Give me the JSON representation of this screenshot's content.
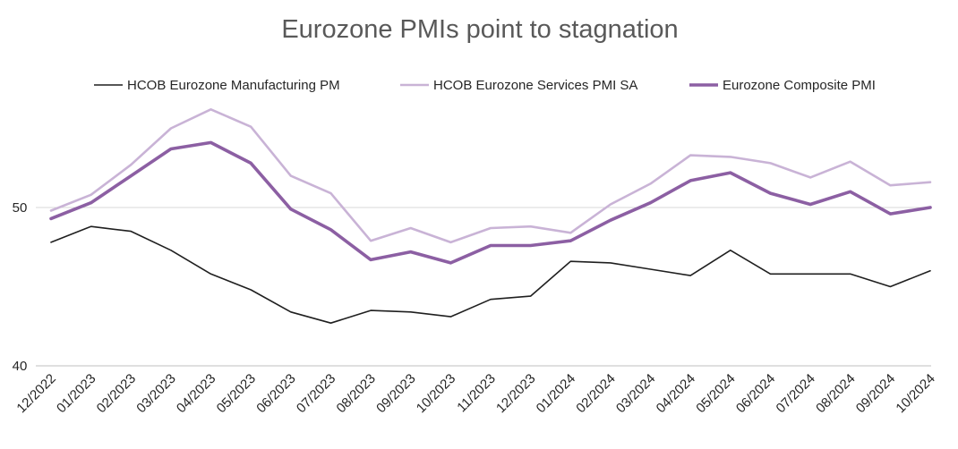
{
  "chart_data": {
    "type": "line",
    "title": "Eurozone PMIs point to stagnation",
    "xlabel": "",
    "ylabel": "",
    "categories": [
      "12/2022",
      "01/2023",
      "02/2023",
      "03/2023",
      "04/2023",
      "05/2023",
      "06/2023",
      "07/2023",
      "08/2023",
      "09/2023",
      "10/2023",
      "11/2023",
      "12/2023",
      "01/2024",
      "02/2024",
      "03/2024",
      "04/2024",
      "05/2024",
      "06/2024",
      "07/2024",
      "08/2024",
      "09/2024",
      "10/2024"
    ],
    "yticks": [
      40,
      50
    ],
    "ylim": [
      40,
      60
    ],
    "grid": "horizontal",
    "legend_position": "top",
    "series": [
      {
        "name": "HCOB Eurozone Manufacturing PM",
        "color": "#1f1f1f",
        "width": 1.6,
        "values": [
          47.8,
          48.8,
          48.5,
          47.3,
          45.8,
          44.8,
          43.4,
          42.7,
          43.5,
          43.4,
          43.1,
          44.2,
          44.4,
          46.6,
          46.5,
          46.1,
          45.7,
          47.3,
          45.8,
          45.8,
          45.8,
          45.0,
          46.0
        ]
      },
      {
        "name": "HCOB Eurozone Services PMI SA",
        "color": "#c9b3d6",
        "width": 2.6,
        "values": [
          49.8,
          50.8,
          52.7,
          55.0,
          56.2,
          55.1,
          52.0,
          50.9,
          47.9,
          48.7,
          47.8,
          48.7,
          48.8,
          48.4,
          50.2,
          51.5,
          53.3,
          53.2,
          52.8,
          51.9,
          52.9,
          51.4,
          51.6
        ]
      },
      {
        "name": "Eurozone Composite PMI",
        "color": "#8c5fa3",
        "width": 3.6,
        "values": [
          49.3,
          50.3,
          52.0,
          53.7,
          54.1,
          52.8,
          49.9,
          48.6,
          46.7,
          47.2,
          46.5,
          47.6,
          47.6,
          47.9,
          49.2,
          50.3,
          51.7,
          52.2,
          50.9,
          50.2,
          51.0,
          49.6,
          50.0
        ]
      }
    ]
  }
}
